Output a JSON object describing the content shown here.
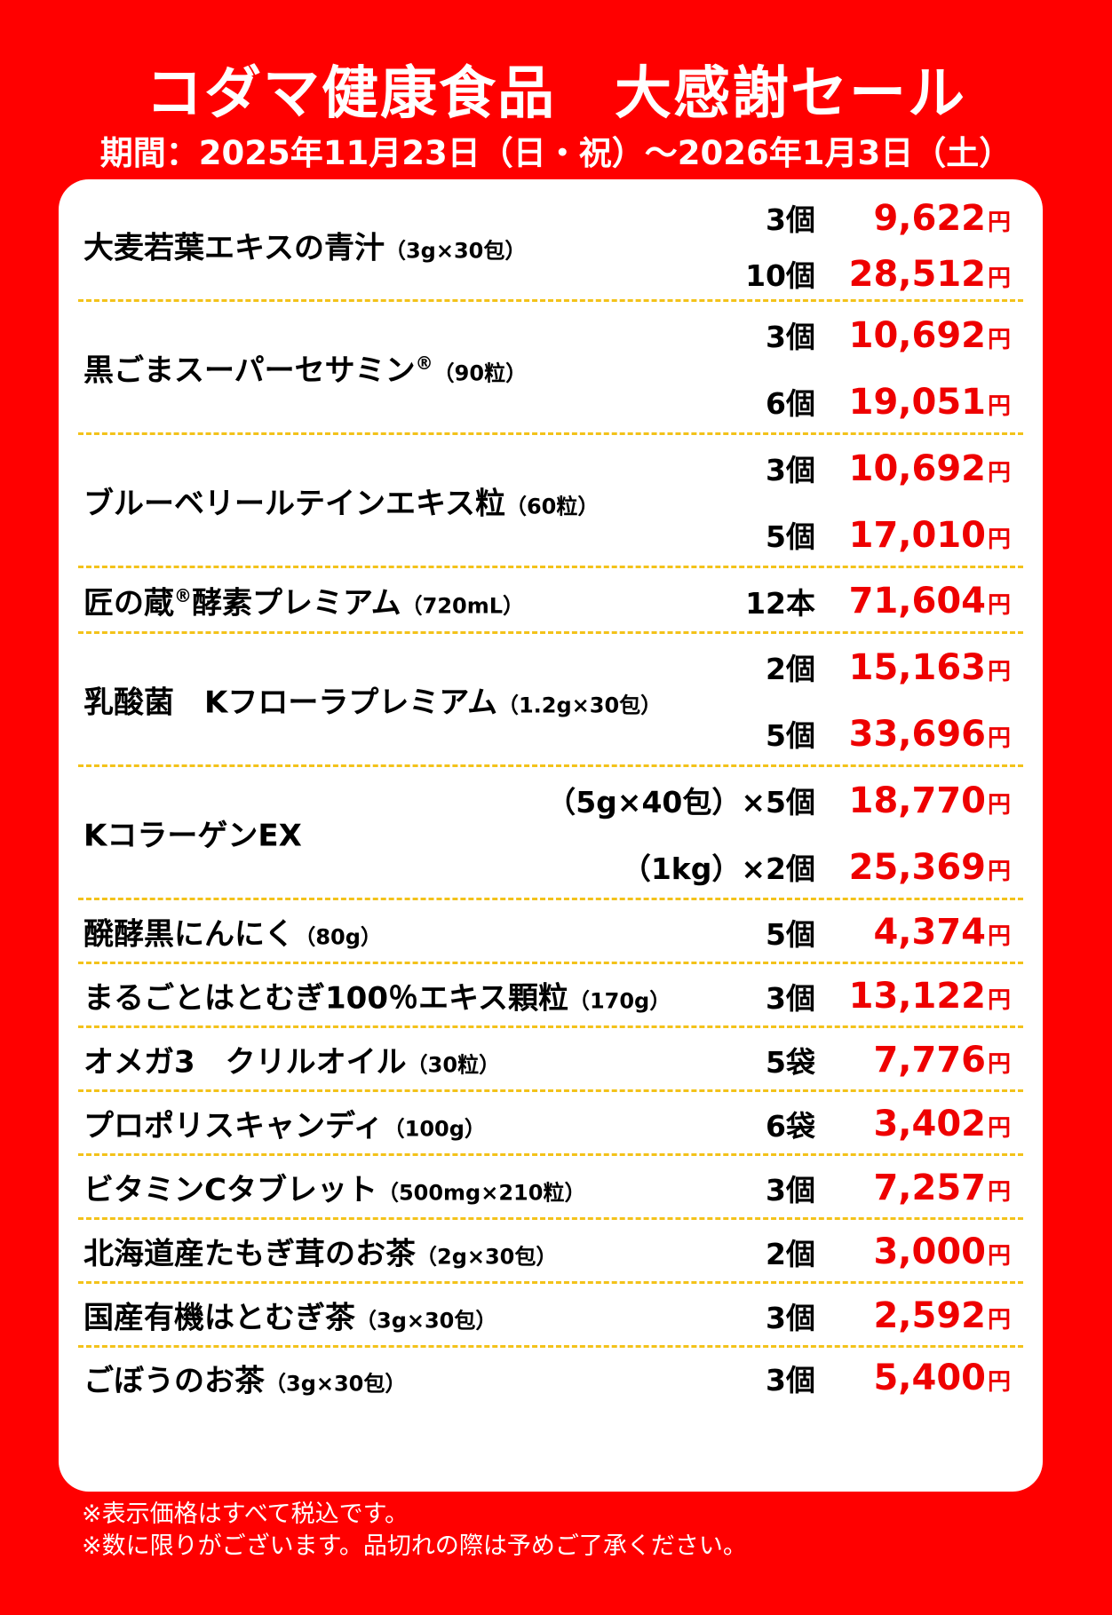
{
  "header": {
    "title": "コダマ健康食品　大感謝セール",
    "period": "期間：2025年11月23日（日・祝）～2026年1月3日（土）"
  },
  "products": [
    {
      "name": "大麦若葉エキスの青汁",
      "size": "（3g×30包）",
      "options": [
        {
          "qty": "3個",
          "price": "9,622"
        },
        {
          "qty": "10個",
          "price": "28,512"
        }
      ]
    },
    {
      "name": "黒ごまスーパーセサミン",
      "mark": "®",
      "size": "（90粒）",
      "options": [
        {
          "qty": "3個",
          "price": "10,692"
        },
        {
          "qty": "6個",
          "price": "19,051"
        }
      ]
    },
    {
      "name": "ブルーベリールテインエキス粒",
      "size": "（60粒）",
      "options": [
        {
          "qty": "3個",
          "price": "10,692"
        },
        {
          "qty": "5個",
          "price": "17,010"
        }
      ]
    },
    {
      "name": "匠の蔵",
      "mark": "®",
      "name2": "酵素プレミアム",
      "size": "（720mL）",
      "options": [
        {
          "qty": "12本",
          "price": "71,604"
        }
      ]
    },
    {
      "name": "乳酸菌　Kフローラプレミアム",
      "size": "（1.2g×30包）",
      "options": [
        {
          "qty": "2個",
          "price": "15,163"
        },
        {
          "qty": "5個",
          "price": "33,696"
        }
      ]
    },
    {
      "name": "KコラーゲンEX",
      "size": "",
      "options": [
        {
          "qty": "（5g×40包）×5個",
          "price": "18,770"
        },
        {
          "qty": "（1kg）×2個",
          "price": "25,369"
        }
      ]
    },
    {
      "name": "醗酵黒にんにく",
      "size": "（80g）",
      "options": [
        {
          "qty": "5個",
          "price": "4,374"
        }
      ]
    },
    {
      "name": "まるごとはとむぎ100％エキス顆粒",
      "size": "（170g）",
      "options": [
        {
          "qty": "3個",
          "price": "13,122"
        }
      ]
    },
    {
      "name": "オメガ3　クリルオイル",
      "size": "（30粒）",
      "options": [
        {
          "qty": "5袋",
          "price": "7,776"
        }
      ]
    },
    {
      "name": "プロポリスキャンディ",
      "size": "（100g）",
      "options": [
        {
          "qty": "6袋",
          "price": "3,402"
        }
      ]
    },
    {
      "name": "ビタミンCタブレット",
      "size": "（500mg×210粒）",
      "options": [
        {
          "qty": "3個",
          "price": "7,257"
        }
      ]
    },
    {
      "name": "北海道産たもぎ茸のお茶",
      "size": "（2g×30包）",
      "options": [
        {
          "qty": "2個",
          "price": "3,000"
        }
      ]
    },
    {
      "name": "国産有機はとむぎ茶",
      "size": "（3g×30包）",
      "options": [
        {
          "qty": "3個",
          "price": "2,592"
        }
      ]
    },
    {
      "name": "ごぼうのお茶",
      "size": "（3g×30包）",
      "options": [
        {
          "qty": "3個",
          "price": "5,400"
        }
      ]
    }
  ],
  "currency": "円",
  "notes": [
    "※表示価格はすべて税込です。",
    "※数に限りがございます。品切れの際は予めご了承ください。"
  ],
  "colors": {
    "background": "#ff0000",
    "price": "#ee0000",
    "divider": "#f3c21a",
    "card": "#ffffff"
  }
}
